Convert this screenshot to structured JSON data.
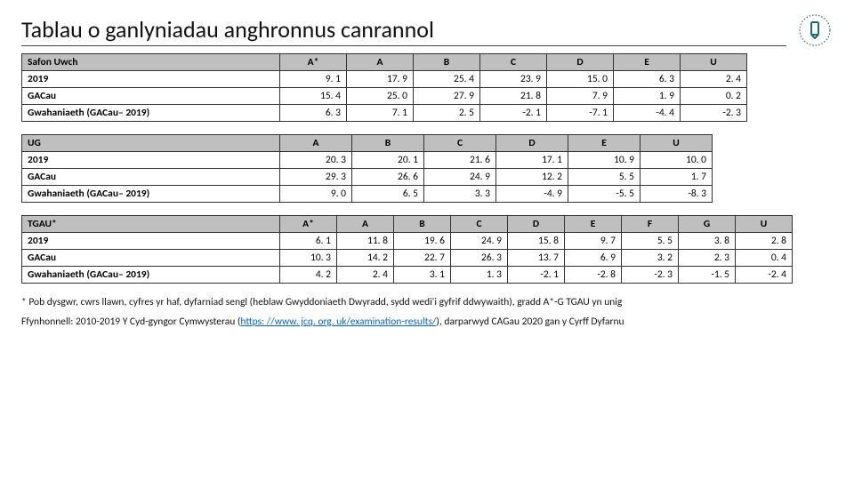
{
  "title": "Tablau o ganlyniadau anghronnus canrannol",
  "logo_stroke": "#1a6b6f",
  "tables": [
    {
      "label_width": 290,
      "col_width_class": "t1",
      "header_label": "Safon Uwch",
      "columns": [
        "A*",
        "A",
        "B",
        "C",
        "D",
        "E",
        "U"
      ],
      "row_labels": [
        "2019",
        "GACau",
        "Gwahaniaeth (GACau– 2019)"
      ],
      "rows": [
        [
          "9. 1",
          "17. 9",
          "25. 4",
          "23. 9",
          "15. 0",
          "6. 3",
          "2. 4"
        ],
        [
          "15. 4",
          "25. 0",
          "27. 9",
          "21. 8",
          "7. 9",
          "1. 9",
          "0. 2"
        ],
        [
          "6. 3",
          "7. 1",
          "2. 5",
          "-2. 1",
          "-7. 1",
          "-4. 4",
          "-2. 3"
        ]
      ]
    },
    {
      "label_width": 290,
      "col_width_class": "t2",
      "header_label": "UG",
      "columns": [
        "A",
        "B",
        "C",
        "D",
        "E",
        "U"
      ],
      "row_labels": [
        "2019",
        "GACau",
        "Gwahaniaeth (GACau– 2019)"
      ],
      "rows": [
        [
          "20. 3",
          "20. 1",
          "21. 6",
          "17. 1",
          "10. 9",
          "10. 0"
        ],
        [
          "29. 3",
          "26. 6",
          "24. 9",
          "12. 2",
          "5. 5",
          "1. 7"
        ],
        [
          "9. 0",
          "6. 5",
          "3. 3",
          "-4. 9",
          "-5. 5",
          "-8. 3"
        ]
      ]
    },
    {
      "label_width": 290,
      "col_width_class": "t3",
      "header_label": "TGAU*",
      "columns": [
        "A*",
        "A",
        "B",
        "C",
        "D",
        "E",
        "F",
        "G",
        "U"
      ],
      "row_labels": [
        "2019",
        "GACau",
        "Gwahaniaeth (GACau– 2019)"
      ],
      "rows": [
        [
          "6. 1",
          "11. 8",
          "19. 6",
          "24. 9",
          "15. 8",
          "9. 7",
          "5. 5",
          "3. 8",
          "2. 8"
        ],
        [
          "10. 3",
          "14. 2",
          "22. 7",
          "26. 3",
          "13. 7",
          "6. 9",
          "3. 2",
          "2. 3",
          "0. 4"
        ],
        [
          "4. 2",
          "2. 4",
          "3. 1",
          "1. 3",
          "-2. 1",
          "-2. 8",
          "-2. 3",
          "-1. 5",
          "-2. 4"
        ]
      ]
    }
  ],
  "footnote": "* Pob dysgwr, cwrs llawn, cyfres yr haf, dyfarniad sengl (heblaw Gwyddoniaeth Dwyradd, sydd wedi'i gyfrif ddwywaith), gradd A*-G TGAU yn unig",
  "source_prefix": "Ffynhonnell: 2010-2019 Y Cyd-gyngor Cymwysterau (",
  "source_link_text": "https: //www. jcq. org. uk/examination-results/",
  "source_link_href": "https://www.jcq.org.uk/examination-results/",
  "source_suffix": "), darparwyd CAGau 2020 gan y Cyrff Dyfarnu"
}
